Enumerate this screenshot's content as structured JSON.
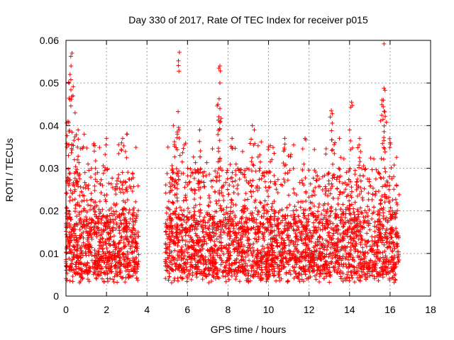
{
  "chart_data": {
    "type": "scatter",
    "title": "Day 330 of 2017, Rate Of TEC Index for receiver p015",
    "xlabel": "GPS time / hours",
    "ylabel": "ROTI / TECUs",
    "xlim": [
      0,
      18
    ],
    "ylim": [
      0,
      0.06
    ],
    "x_ticks": [
      0,
      2,
      4,
      6,
      8,
      10,
      12,
      14,
      16,
      18
    ],
    "y_ticks": [
      0,
      0.01,
      0.02,
      0.03,
      0.04,
      0.05,
      0.06
    ],
    "x_tick_labels": [
      "0",
      "2",
      "4",
      "6",
      "8",
      "10",
      "12",
      "14",
      "16",
      "18"
    ],
    "y_tick_labels": [
      "0",
      "0.01",
      "0.02",
      "0.03",
      "0.04",
      "0.05",
      "0.06"
    ],
    "grid": true,
    "marker": "+",
    "color": "#ff0000",
    "series": [
      {
        "name": "ROTI",
        "segments": [
          {
            "x_start": 0.0,
            "x_end": 3.6,
            "typical_range": [
              0.003,
              0.022
            ]
          },
          {
            "x_start": 4.9,
            "x_end": 16.45,
            "typical_range": [
              0.003,
              0.022
            ]
          }
        ],
        "peaks": [
          {
            "x": 0.3,
            "y": 0.057
          },
          {
            "x": 0.25,
            "y": 0.054
          },
          {
            "x": 0.2,
            "y": 0.052
          },
          {
            "x": 0.15,
            "y": 0.05
          },
          {
            "x": 0.35,
            "y": 0.047
          },
          {
            "x": 0.45,
            "y": 0.043
          },
          {
            "x": 0.1,
            "y": 0.041
          },
          {
            "x": 0.6,
            "y": 0.039
          },
          {
            "x": 0.9,
            "y": 0.038
          },
          {
            "x": 1.4,
            "y": 0.034
          },
          {
            "x": 2.0,
            "y": 0.037
          },
          {
            "x": 2.8,
            "y": 0.037
          },
          {
            "x": 3.0,
            "y": 0.038
          },
          {
            "x": 5.6,
            "y": 0.0572
          },
          {
            "x": 5.55,
            "y": 0.0552
          },
          {
            "x": 5.3,
            "y": 0.04
          },
          {
            "x": 5.5,
            "y": 0.038
          },
          {
            "x": 6.6,
            "y": 0.039
          },
          {
            "x": 7.6,
            "y": 0.054
          },
          {
            "x": 7.55,
            "y": 0.0535
          },
          {
            "x": 7.6,
            "y": 0.05
          },
          {
            "x": 7.5,
            "y": 0.045
          },
          {
            "x": 7.6,
            "y": 0.044
          },
          {
            "x": 8.2,
            "y": 0.037
          },
          {
            "x": 9.2,
            "y": 0.04
          },
          {
            "x": 9.3,
            "y": 0.039
          },
          {
            "x": 10.0,
            "y": 0.035
          },
          {
            "x": 10.8,
            "y": 0.037
          },
          {
            "x": 11.8,
            "y": 0.037
          },
          {
            "x": 13.1,
            "y": 0.0435
          },
          {
            "x": 13.05,
            "y": 0.042
          },
          {
            "x": 13.5,
            "y": 0.037
          },
          {
            "x": 14.1,
            "y": 0.0455
          },
          {
            "x": 14.0,
            "y": 0.039
          },
          {
            "x": 14.5,
            "y": 0.037
          },
          {
            "x": 15.7,
            "y": 0.0592
          },
          {
            "x": 15.7,
            "y": 0.0488
          },
          {
            "x": 15.75,
            "y": 0.0483
          },
          {
            "x": 15.6,
            "y": 0.046
          },
          {
            "x": 16.0,
            "y": 0.036
          }
        ]
      }
    ]
  }
}
